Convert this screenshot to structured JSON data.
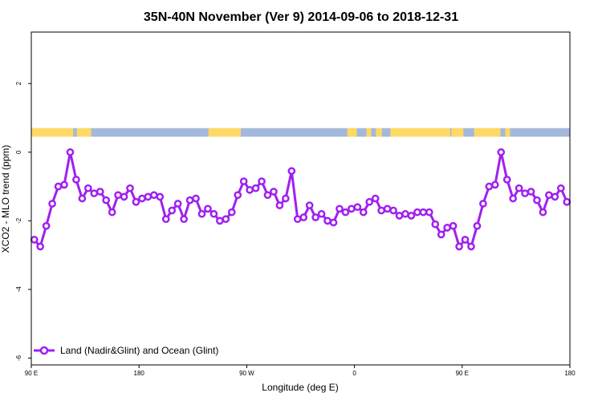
{
  "chart_data": {
    "type": "line",
    "title": "35N-40N November (Ver 9)   2014-09-06 to 2018-12-31",
    "xlabel": "Longitude (deg E)",
    "ylabel": "XCO2 - MLO trend (ppm)",
    "xlim": [
      90,
      540
    ],
    "ylim": [
      -6.2,
      3.5
    ],
    "xticks": [
      {
        "value": 90,
        "label": "90 E"
      },
      {
        "value": 180,
        "label": "180"
      },
      {
        "value": 270,
        "label": "90 W"
      },
      {
        "value": 360,
        "label": "0"
      },
      {
        "value": 450,
        "label": "90 E"
      },
      {
        "value": 540,
        "label": "180"
      }
    ],
    "yticks": [
      {
        "value": 2,
        "label": "2"
      },
      {
        "value": 0,
        "label": "0"
      },
      {
        "value": -2,
        "label": "-2"
      },
      {
        "value": -4,
        "label": "-4"
      },
      {
        "value": -6,
        "label": "-6"
      }
    ],
    "grid": false,
    "legend_position": "bottom-left",
    "colors": {
      "series": "#a020f0",
      "land": "#ffd966",
      "ocean": "#a3b9dc"
    },
    "series": [
      {
        "name": "Land (Nadir&Glint) and Ocean (Glint)",
        "x": [
          92.5,
          97.5,
          102.5,
          107.5,
          112.5,
          117.5,
          122.5,
          127.5,
          132.5,
          137.5,
          142.5,
          147.5,
          152.5,
          157.5,
          162.5,
          167.5,
          172.5,
          177.5,
          182.5,
          187.5,
          192.5,
          197.5,
          202.5,
          207.5,
          212.5,
          217.5,
          222.5,
          227.5,
          232.5,
          237.5,
          242.5,
          247.5,
          252.5,
          257.5,
          262.5,
          267.5,
          272.5,
          277.5,
          282.5,
          287.5,
          292.5,
          297.5,
          302.5,
          307.5,
          312.5,
          317.5,
          322.5,
          327.5,
          332.5,
          337.5,
          342.5,
          347.5,
          352.5,
          357.5,
          362.5,
          367.5,
          372.5,
          377.5,
          382.5,
          387.5,
          392.5,
          397.5,
          402.5,
          407.5,
          412.5,
          417.5,
          422.5,
          427.5,
          432.5,
          437.5,
          442.5,
          447.5,
          452.5,
          457.5,
          462.5,
          467.5,
          472.5,
          477.5,
          482.5,
          487.5,
          492.5,
          497.5,
          502.5,
          507.5,
          512.5,
          517.5,
          522.5,
          527.5,
          532.5,
          537.5
        ],
        "y": [
          -2.55,
          -2.75,
          -2.15,
          -1.5,
          -1.0,
          -0.95,
          0.0,
          -0.8,
          -1.35,
          -1.05,
          -1.2,
          -1.15,
          -1.4,
          -1.75,
          -1.25,
          -1.3,
          -1.05,
          -1.45,
          -1.35,
          -1.3,
          -1.25,
          -1.3,
          -1.95,
          -1.7,
          -1.5,
          -1.95,
          -1.4,
          -1.35,
          -1.8,
          -1.65,
          -1.8,
          -2.0,
          -1.95,
          -1.75,
          -1.25,
          -0.85,
          -1.1,
          -1.05,
          -0.85,
          -1.25,
          -1.15,
          -1.55,
          -1.35,
          -0.55,
          -1.95,
          -1.9,
          -1.55,
          -1.9,
          -1.8,
          -2.0,
          -2.05,
          -1.65,
          -1.75,
          -1.65,
          -1.6,
          -1.75,
          -1.45,
          -1.35,
          -1.7,
          -1.65,
          -1.7,
          -1.85,
          -1.8,
          -1.85,
          -1.75,
          -1.75,
          -1.75,
          -2.1,
          -2.4,
          -2.2,
          -2.15,
          -2.75,
          -2.55,
          -2.75,
          -2.15,
          -1.5,
          -1.0,
          -0.95,
          0.0,
          -0.8,
          -1.35,
          -1.05,
          -1.2,
          -1.15,
          -1.4,
          -1.75,
          -1.25,
          -1.3,
          -1.05,
          -1.45
        ]
      }
    ],
    "surface_strip": {
      "y_range": [
        0.45,
        0.7
      ],
      "land_segments": [
        [
          90,
          125
        ],
        [
          128,
          140
        ],
        [
          238,
          265
        ],
        [
          354,
          362
        ],
        [
          370,
          374
        ],
        [
          378,
          383
        ],
        [
          390,
          440
        ],
        [
          441,
          451
        ],
        [
          460,
          482
        ],
        [
          486,
          490
        ]
      ]
    }
  }
}
